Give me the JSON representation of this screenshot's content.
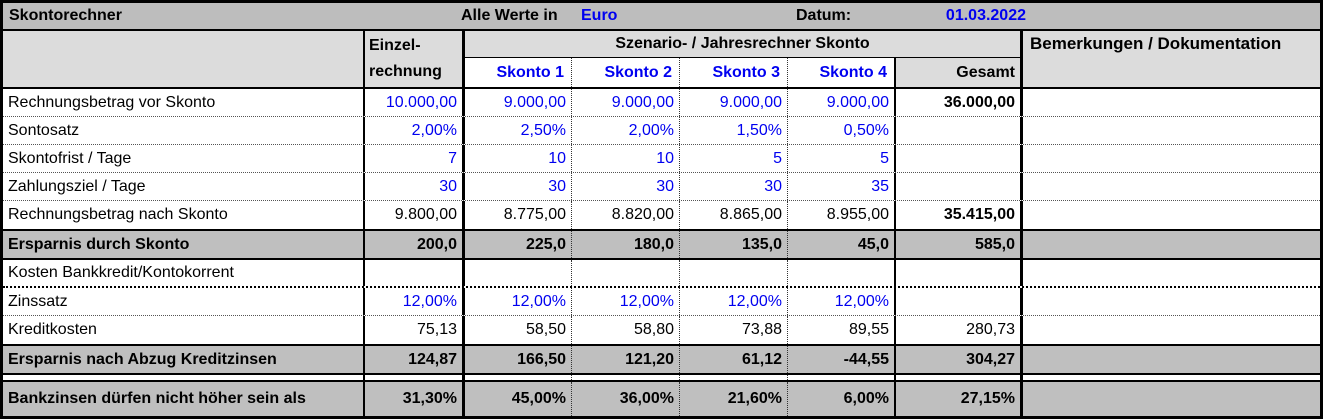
{
  "title_bar": {
    "app_title": "Skontorechner",
    "values_note": "Alle Werte in",
    "currency": "Euro",
    "date_label": "Datum:",
    "date_value": "01.03.2022"
  },
  "header": {
    "einzel_line1": "Einzel-",
    "einzel_line2": "rechnung",
    "scenario_title": "Szenario- / Jahresrechner Skonto",
    "skonto_columns": [
      "Skonto 1",
      "Skonto 2",
      "Skonto 3",
      "Skonto 4"
    ],
    "gesamt_label": "Gesamt",
    "bemerkungen_label": "Bemerkungen / Dokumentation"
  },
  "colors": {
    "input_blue": "#0000f0",
    "title_gray": "#bdbdbd",
    "header_gray": "#dcdcdc",
    "highlight_gray": "#bfbfbf"
  },
  "table": {
    "rows": [
      {
        "label": "Rechnungsbetrag vor Skonto",
        "highlight": false,
        "cells": [
          {
            "t": "10.000,00",
            "blue": true
          },
          {
            "t": "9.000,00",
            "blue": true
          },
          {
            "t": "9.000,00",
            "blue": true
          },
          {
            "t": "9.000,00",
            "blue": true
          },
          {
            "t": "9.000,00",
            "blue": true
          },
          {
            "t": "36.000,00",
            "bold": true
          }
        ]
      },
      {
        "label": "Sontosatz",
        "highlight": false,
        "cells": [
          {
            "t": "2,00%",
            "blue": true
          },
          {
            "t": "2,50%",
            "blue": true
          },
          {
            "t": "2,00%",
            "blue": true
          },
          {
            "t": "1,50%",
            "blue": true
          },
          {
            "t": "0,50%",
            "blue": true
          },
          {
            "t": ""
          }
        ]
      },
      {
        "label": "Skontofrist / Tage",
        "highlight": false,
        "cells": [
          {
            "t": "7",
            "blue": true
          },
          {
            "t": "10",
            "blue": true
          },
          {
            "t": "10",
            "blue": true
          },
          {
            "t": "5",
            "blue": true
          },
          {
            "t": "5",
            "blue": true
          },
          {
            "t": ""
          }
        ]
      },
      {
        "label": "Zahlungsziel / Tage",
        "highlight": false,
        "cells": [
          {
            "t": "30",
            "blue": true
          },
          {
            "t": "30",
            "blue": true
          },
          {
            "t": "30",
            "blue": true
          },
          {
            "t": "30",
            "blue": true
          },
          {
            "t": "35",
            "blue": true
          },
          {
            "t": ""
          }
        ]
      },
      {
        "label": "Rechnungsbetrag nach Skonto",
        "highlight": false,
        "cells": [
          {
            "t": "9.800,00"
          },
          {
            "t": "8.775,00"
          },
          {
            "t": "8.820,00"
          },
          {
            "t": "8.865,00"
          },
          {
            "t": "8.955,00"
          },
          {
            "t": "35.415,00",
            "bold": true
          }
        ]
      },
      {
        "label": "Ersparnis durch Skonto",
        "highlight": true,
        "cells": [
          {
            "t": "200,0"
          },
          {
            "t": "225,0"
          },
          {
            "t": "180,0"
          },
          {
            "t": "135,0"
          },
          {
            "t": "45,0"
          },
          {
            "t": "585,0"
          }
        ]
      },
      {
        "label": "Kosten Bankkredit/Kontokorrent",
        "highlight": false,
        "cells": [
          {
            "t": ""
          },
          {
            "t": ""
          },
          {
            "t": ""
          },
          {
            "t": ""
          },
          {
            "t": ""
          },
          {
            "t": ""
          }
        ]
      },
      {
        "label": "Zinssatz",
        "highlight": false,
        "cells": [
          {
            "t": "12,00%",
            "blue": true
          },
          {
            "t": "12,00%",
            "blue": true
          },
          {
            "t": "12,00%",
            "blue": true
          },
          {
            "t": "12,00%",
            "blue": true
          },
          {
            "t": "12,00%",
            "blue": true
          },
          {
            "t": ""
          }
        ]
      },
      {
        "label": "Kreditkosten",
        "highlight": false,
        "cells": [
          {
            "t": "75,13"
          },
          {
            "t": "58,50"
          },
          {
            "t": "58,80"
          },
          {
            "t": "73,88"
          },
          {
            "t": "89,55"
          },
          {
            "t": "280,73"
          }
        ]
      },
      {
        "label": "Ersparnis nach Abzug Kreditzinsen",
        "highlight": true,
        "cells": [
          {
            "t": "124,87"
          },
          {
            "t": "166,50"
          },
          {
            "t": "121,20"
          },
          {
            "t": "61,12"
          },
          {
            "t": "-44,55"
          },
          {
            "t": "304,27"
          }
        ]
      },
      {
        "label": "Bankzinsen dürfen nicht höher sein als",
        "highlight": true,
        "cells": [
          {
            "t": "31,30%"
          },
          {
            "t": "45,00%"
          },
          {
            "t": "36,00%"
          },
          {
            "t": "21,60%"
          },
          {
            "t": "6,00%"
          },
          {
            "t": "27,15%"
          }
        ]
      }
    ]
  }
}
